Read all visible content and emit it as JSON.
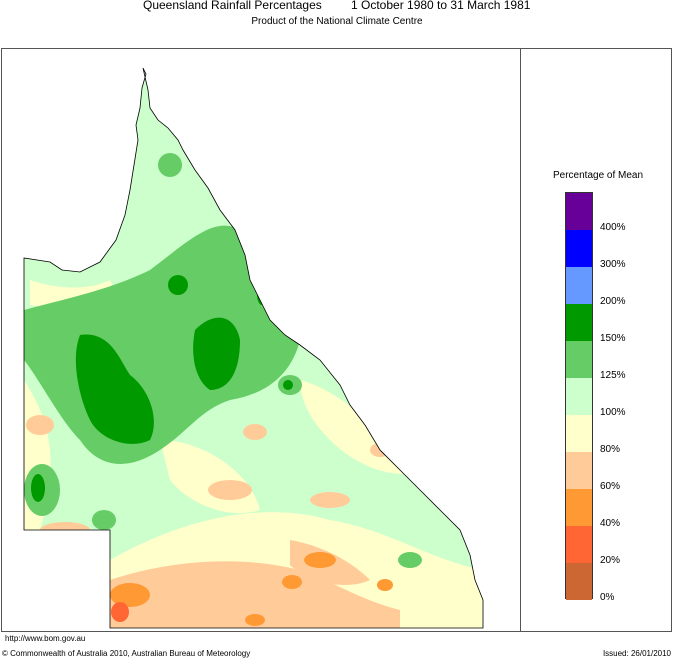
{
  "header": {
    "title": "Queensland Rainfall Percentages",
    "period": "1 October 1980 to 31 March 1981",
    "subtitle": "Product of the National Climate Centre"
  },
  "legend": {
    "title": "Percentage of Mean",
    "bins": [
      {
        "label": "400%",
        "color": "#660099"
      },
      {
        "label": "300%",
        "color": "#0000ff"
      },
      {
        "label": "200%",
        "color": "#6699ff"
      },
      {
        "label": "150%",
        "color": "#009900"
      },
      {
        "label": "125%",
        "color": "#66cc66"
      },
      {
        "label": "100%",
        "color": "#ccffcc"
      },
      {
        "label": "80%",
        "color": "#ffffcc"
      },
      {
        "label": "60%",
        "color": "#ffcc99"
      },
      {
        "label": "40%",
        "color": "#ff9933"
      },
      {
        "label": "20%",
        "color": "#ff6633"
      },
      {
        "label": "0%",
        "color": "#cc6633"
      }
    ]
  },
  "footer": {
    "url": "http://www.bom.gov.au",
    "copyright": "© Commonwealth of Australia 2010, Australian Bureau of Meteorology",
    "issued": "Issued: 26/01/2010"
  },
  "map_colors": {
    "outline": "#000000",
    "pale_green": "#ccffcc",
    "mid_green": "#66cc66",
    "dark_green": "#009900",
    "cream": "#ffffcc",
    "peach": "#ffcc99",
    "orange": "#ff9933",
    "red_orange": "#ff6633"
  }
}
